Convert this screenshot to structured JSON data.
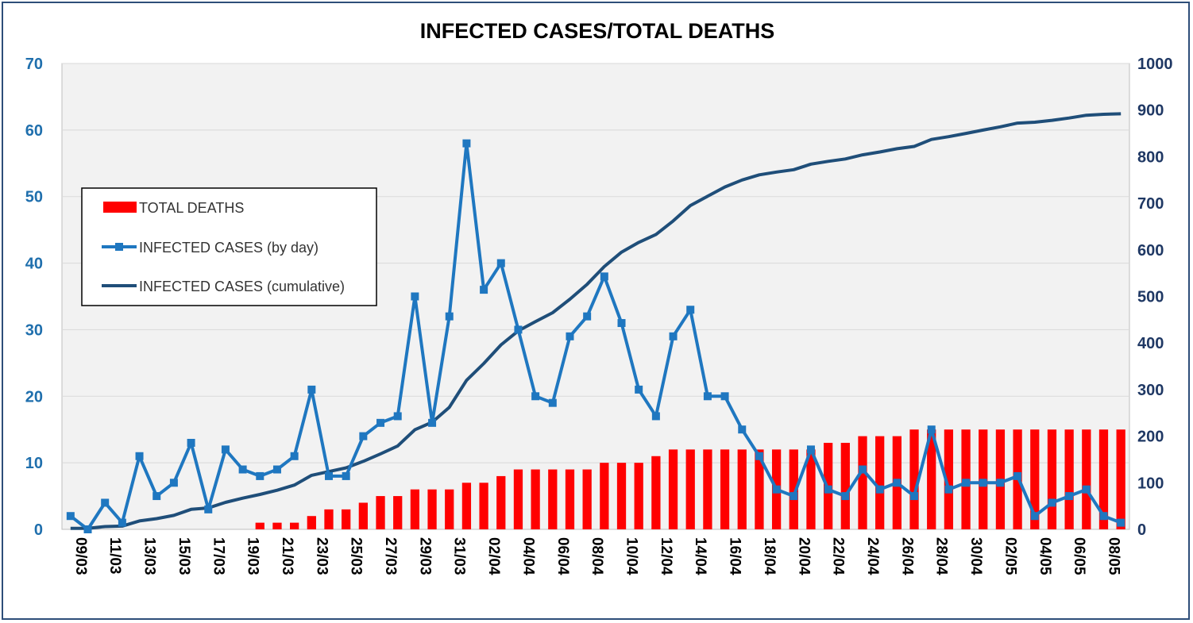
{
  "chart_data": {
    "type": "bar+line",
    "title": "INFECTED CASES/TOTAL DEATHS",
    "xlabel": "",
    "ylabel": "",
    "y_left": {
      "min": 0,
      "max": 70,
      "ticks": [
        0,
        10,
        20,
        30,
        40,
        50,
        60,
        70
      ]
    },
    "y_right": {
      "min": 0,
      "max": 1000,
      "ticks": [
        0,
        100,
        200,
        300,
        400,
        500,
        600,
        700,
        800,
        900,
        1000
      ]
    },
    "grid": true,
    "legend_position": "left",
    "x_tick_labels": [
      "09/03",
      "11/03",
      "13/03",
      "15/03",
      "17/03",
      "19/03",
      "21/03",
      "23/03",
      "25/03",
      "27/03",
      "29/03",
      "31/03",
      "02/04",
      "04/04",
      "06/04",
      "08/04",
      "10/04",
      "12/04",
      "14/04",
      "16/04",
      "18/04",
      "20/04",
      "22/04",
      "24/04",
      "26/04",
      "28/04",
      "30/04",
      "02/05",
      "04/05",
      "06/05",
      "08/05"
    ],
    "x": [
      "09/03",
      "10/03",
      "11/03",
      "12/03",
      "13/03",
      "14/03",
      "15/03",
      "16/03",
      "17/03",
      "18/03",
      "19/03",
      "20/03",
      "21/03",
      "22/03",
      "23/03",
      "24/03",
      "25/03",
      "26/03",
      "27/03",
      "28/03",
      "29/03",
      "30/03",
      "31/03",
      "01/04",
      "02/04",
      "03/04",
      "04/04",
      "05/04",
      "06/04",
      "07/04",
      "08/04",
      "09/04",
      "10/04",
      "11/04",
      "12/04",
      "13/04",
      "14/04",
      "15/04",
      "16/04",
      "17/04",
      "18/04",
      "19/04",
      "20/04",
      "21/04",
      "22/04",
      "23/04",
      "24/04",
      "25/04",
      "26/04",
      "27/04",
      "28/04",
      "29/04",
      "30/04",
      "01/05",
      "02/05",
      "03/05",
      "04/05",
      "05/05",
      "06/05",
      "07/05",
      "08/05",
      "09/05"
    ],
    "series": [
      {
        "name": "TOTAL DEATHS",
        "kind": "bar",
        "axis": "left",
        "color": "#ff0000",
        "values": [
          0,
          0,
          0,
          0,
          0,
          0,
          0,
          0,
          0,
          0,
          0,
          1,
          1,
          1,
          2,
          3,
          3,
          4,
          5,
          5,
          6,
          6,
          6,
          7,
          7,
          8,
          9,
          9,
          9,
          9,
          9,
          10,
          10,
          10,
          11,
          12,
          12,
          12,
          12,
          12,
          12,
          12,
          12,
          12,
          13,
          13,
          14,
          14,
          14,
          15,
          15,
          15,
          15,
          15,
          15,
          15,
          15,
          15,
          15,
          15,
          15,
          15
        ]
      },
      {
        "name": "INFECTED CASES (by day)",
        "kind": "line-marker",
        "axis": "left",
        "color": "#1f77c0",
        "values": [
          2,
          0,
          4,
          1,
          11,
          5,
          7,
          13,
          3,
          12,
          9,
          8,
          9,
          11,
          21,
          8,
          8,
          14,
          16,
          17,
          35,
          16,
          32,
          58,
          36,
          40,
          30,
          20,
          19,
          29,
          32,
          38,
          31,
          21,
          17,
          29,
          33,
          20,
          20,
          15,
          11,
          6,
          5,
          12,
          6,
          5,
          9,
          6,
          7,
          5,
          15,
          6,
          7,
          7,
          7,
          8,
          2,
          4,
          5,
          6,
          2,
          1
        ]
      },
      {
        "name": "INFECTED CASES (cumulative)",
        "kind": "line",
        "axis": "right",
        "color": "#1f4e79",
        "values": [
          2,
          2,
          6,
          7,
          18,
          23,
          30,
          43,
          46,
          58,
          67,
          75,
          84,
          95,
          116,
          124,
          132,
          146,
          162,
          179,
          214,
          230,
          262,
          320,
          356,
          396,
          426,
          446,
          465,
          494,
          526,
          564,
          595,
          616,
          633,
          662,
          695,
          715,
          735,
          750,
          761,
          767,
          772,
          784,
          790,
          795,
          804,
          810,
          817,
          822,
          837,
          843,
          850,
          857,
          864,
          872,
          874,
          878,
          883,
          889,
          891,
          892
        ]
      }
    ]
  },
  "colors": {
    "frame": "#2e4e79",
    "plot_bg": "#f2f2f2",
    "grid": "#d9d9d9",
    "left_axis_text": "#1f6fad",
    "right_axis_text": "#1f3864"
  }
}
